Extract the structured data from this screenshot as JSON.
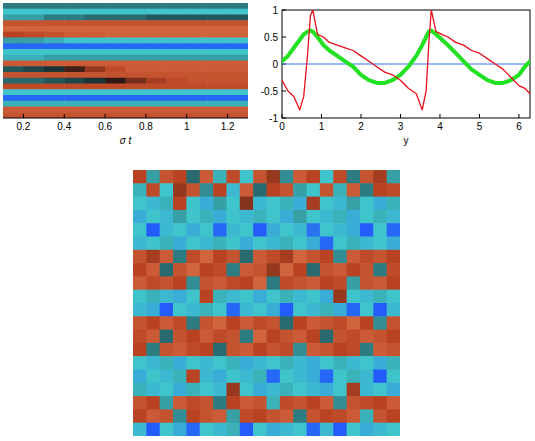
{
  "chart_data": [
    {
      "type": "heatmap",
      "x_label": "σ t",
      "xlim": [
        0.1,
        1.3
      ],
      "xticks": [
        0.2,
        0.4,
        0.6,
        0.8,
        1,
        1.2
      ],
      "tick_labels": "x",
      "color_range": [
        -2,
        2
      ],
      "cells": [
        [
          -0.6,
          -0.6,
          -0.6,
          -0.6,
          -0.6,
          -0.6,
          -0.6,
          -0.6,
          -0.6,
          -0.6,
          -0.6,
          -0.6
        ],
        [
          -1,
          -1,
          -1,
          -1,
          -1,
          -1,
          -1,
          -1,
          -1,
          -1,
          -1,
          -1
        ],
        [
          -0.8,
          -0.8,
          -0.6,
          -0.6,
          -0.5,
          -0.5,
          -0.5,
          -0.4,
          -0.4,
          -0.4,
          -0.4,
          -0.4
        ],
        [
          1.2,
          1.2,
          1.2,
          1.2,
          1.2,
          1.2,
          1.2,
          1.2,
          1.2,
          1.2,
          1.2,
          1.2
        ],
        [
          1.4,
          1.4,
          1.4,
          1.4,
          1.4,
          1.4,
          1.4,
          1.4,
          1.4,
          1.4,
          1.4,
          1.4
        ],
        [
          1,
          1.1,
          1.2,
          1.3,
          1.3,
          1.4,
          1.4,
          1.4,
          1.4,
          1.4,
          1.4,
          1.4
        ],
        [
          -0.8,
          -0.8,
          -0.9,
          -1,
          -1,
          -1,
          -1,
          -1,
          -1,
          -1,
          -1,
          -1
        ],
        [
          -1.8,
          -1.8,
          -1.8,
          -1.8,
          -1.8,
          -1.8,
          -1.8,
          -1.8,
          -1.8,
          -1.8,
          -1.8,
          -1.8
        ],
        [
          -1,
          -1,
          -1,
          -1,
          -1,
          -1,
          -1,
          -1,
          -1,
          -1,
          -1,
          -1
        ],
        [
          -0.9,
          -0.9,
          -0.8,
          -0.8,
          -0.8,
          -0.8,
          -0.8,
          -0.8,
          -0.8,
          -0.8,
          -0.8,
          -0.8
        ],
        [
          1.3,
          1.3,
          1.3,
          1.3,
          1.3,
          1.3,
          1.3,
          1.3,
          1.3,
          1.3,
          1.3,
          1.3
        ],
        [
          -0.4,
          -0.3,
          -0.2,
          0.3,
          0.8,
          1.1,
          1.3,
          1.3,
          1.3,
          1.3,
          1.3,
          1.3
        ],
        [
          1.2,
          1.2,
          1.2,
          1.2,
          1.2,
          1.2,
          1.2,
          1.2,
          1.2,
          1.2,
          1.2,
          1.2
        ],
        [
          -0.5,
          -0.5,
          -0.4,
          -0.3,
          -0.2,
          0.2,
          0.6,
          0.9,
          1.1,
          1.2,
          1.2,
          1.2
        ],
        [
          1.1,
          1.1,
          1.1,
          1.1,
          1.1,
          1.1,
          1.1,
          1.1,
          1.1,
          1.1,
          1.1,
          1.1
        ],
        [
          -1,
          -1,
          -1,
          -1,
          -1,
          -1,
          -1,
          -1,
          -1,
          -1,
          -1,
          -1
        ],
        [
          -1.8,
          -1.8,
          -1.8,
          -1.8,
          -1.8,
          -1.8,
          -1.8,
          -1.8,
          -1.8,
          -1.8,
          -1.8,
          -1.8
        ],
        [
          -0.9,
          -0.9,
          -0.9,
          -0.9,
          -0.9,
          -0.9,
          -0.9,
          -0.9,
          -0.9,
          -0.9,
          -0.9,
          -0.9
        ],
        [
          1.3,
          1.3,
          1.3,
          1.3,
          1.3,
          1.3,
          1.3,
          1.3,
          1.3,
          1.3,
          1.3,
          1.3
        ],
        [
          1.2,
          1.2,
          1.2,
          1.2,
          1.2,
          1.2,
          1.2,
          1.2,
          1.2,
          1.2,
          1.2,
          1.2
        ]
      ]
    },
    {
      "type": "line",
      "x_label": "y",
      "xlim": [
        0,
        6.28
      ],
      "ylim": [
        -1,
        1
      ],
      "xticks": [
        0,
        1,
        2,
        3,
        4,
        5,
        6
      ],
      "yticks": [
        -1,
        -0.5,
        0,
        0.5,
        1
      ],
      "x": [
        0,
        0.15,
        0.3,
        0.45,
        0.55,
        0.65,
        0.72,
        0.78,
        0.9,
        1.05,
        1.2,
        1.4,
        1.6,
        1.8,
        2.0,
        2.2,
        2.4,
        2.6,
        2.8,
        3.0,
        3.2,
        3.4,
        3.55,
        3.65,
        3.72,
        3.78,
        3.9,
        4.05,
        4.2,
        4.4,
        4.6,
        4.8,
        5.0,
        5.2,
        5.4,
        5.6,
        5.8,
        6.0,
        6.15,
        6.28
      ],
      "series": [
        {
          "color": "#e8101a",
          "values": [
            -0.3,
            -0.5,
            -0.6,
            -0.85,
            -0.6,
            0.2,
            0.9,
            1.0,
            0.55,
            0.5,
            0.4,
            0.35,
            0.3,
            0.25,
            0.15,
            0.05,
            -0.05,
            -0.15,
            -0.2,
            -0.3,
            -0.45,
            -0.55,
            -0.85,
            -0.5,
            0.4,
            1.0,
            0.6,
            0.55,
            0.5,
            0.4,
            0.35,
            0.25,
            0.2,
            0.1,
            0.0,
            -0.1,
            -0.25,
            -0.4,
            -0.45,
            -0.55
          ]
        },
        {
          "color": "#22e022",
          "values": [
            0.05,
            0.15,
            0.3,
            0.45,
            0.55,
            0.6,
            0.62,
            0.6,
            0.5,
            0.35,
            0.25,
            0.15,
            0.05,
            -0.05,
            -0.2,
            -0.3,
            -0.35,
            -0.35,
            -0.3,
            -0.2,
            -0.05,
            0.15,
            0.35,
            0.5,
            0.6,
            0.62,
            0.55,
            0.45,
            0.35,
            0.2,
            0.05,
            -0.1,
            -0.2,
            -0.3,
            -0.35,
            -0.35,
            -0.3,
            -0.2,
            -0.05,
            0.05
          ]
        },
        {
          "color": "#3070ff",
          "values": [
            0,
            0,
            0,
            0,
            0,
            0,
            0,
            0,
            0,
            0,
            0,
            0,
            0,
            0,
            0,
            0,
            0,
            0,
            0,
            0,
            0,
            0,
            0,
            0,
            0,
            0,
            0,
            0,
            0,
            0,
            0,
            0,
            0,
            0,
            0,
            0,
            0,
            0,
            0,
            0
          ]
        }
      ]
    },
    {
      "type": "heatmap",
      "tick_labels": false,
      "color_range": [
        -2,
        2
      ],
      "cells": [
        [
          1,
          -0.8,
          1.2,
          1,
          -0.5,
          1.3,
          -0.9,
          1.1,
          -1,
          1.2,
          0.8,
          -0.7,
          1.3,
          1,
          -1,
          1.1,
          -0.6,
          1.2,
          0.9,
          -0.8
        ],
        [
          -0.9,
          1.1,
          -1,
          0.8,
          1.2,
          -0.7,
          1,
          -1.1,
          1.3,
          -0.5,
          1,
          1.2,
          -0.8,
          -1,
          1.2,
          -0.9,
          1.3,
          -0.6,
          1,
          1.1
        ],
        [
          -1,
          -1.1,
          -0.9,
          1,
          -1,
          -1.2,
          -0.8,
          -1,
          0.7,
          -1.1,
          -1,
          -0.9,
          -1.2,
          0.9,
          -1,
          -1.1,
          -0.8,
          -1,
          -1.2,
          -0.9
        ],
        [
          -1.2,
          -1,
          -1.1,
          -0.8,
          -1,
          -0.9,
          -1.2,
          -1,
          -1.1,
          -0.9,
          -1,
          -1.2,
          -0.8,
          -1,
          -1.1,
          -0.9,
          -1.2,
          -1,
          -0.9,
          -1.1
        ],
        [
          -1,
          -1.9,
          -1.1,
          -1,
          -1.2,
          -1,
          -1.8,
          -1.1,
          -1,
          -1.9,
          -1.2,
          -1,
          -1.1,
          -1.7,
          -1,
          -1.1,
          -1.2,
          -1.9,
          -1,
          -1.8
        ],
        [
          -1.1,
          -1,
          -0.9,
          -1.2,
          -1,
          -1.1,
          -0.9,
          -1,
          -1.2,
          -1,
          -1.1,
          -0.9,
          -1,
          -1.2,
          -1.8,
          -1,
          -0.9,
          -1.1,
          -1,
          -1.2
        ],
        [
          1.2,
          0.9,
          1.3,
          -0.6,
          1.1,
          1.4,
          1,
          1.2,
          -0.5,
          1.3,
          1.1,
          0.9,
          1.4,
          1.2,
          1,
          -0.7,
          1.3,
          1.1,
          1.2,
          1
        ],
        [
          1,
          1.3,
          -0.5,
          1.2,
          1.4,
          1,
          1.1,
          -0.6,
          1.3,
          1.2,
          0.8,
          1.4,
          1,
          -0.5,
          1.2,
          1.3,
          1,
          1.2,
          -0.6,
          1.1
        ],
        [
          1.3,
          1.1,
          1.2,
          1,
          -0.7,
          1.2,
          1.3,
          1.1,
          1,
          1.4,
          -0.6,
          1.1,
          1.2,
          1.3,
          1,
          1.1,
          -0.8,
          1.2,
          1.3,
          1
        ],
        [
          -1,
          -0.9,
          -1.1,
          -1.2,
          -1,
          1,
          -0.9,
          -1.1,
          -1,
          -1.2,
          -1,
          -0.9,
          -1.1,
          -1,
          -1.2,
          0.8,
          -1,
          -1.1,
          -0.9,
          -1
        ],
        [
          -1.1,
          -1.2,
          -1.9,
          -1,
          -1.1,
          -0.9,
          -1,
          -1.8,
          -1.1,
          -1,
          -1.2,
          -1.9,
          -1,
          -1.1,
          -0.9,
          -1.2,
          -1.8,
          -1,
          -1.9,
          -1.1
        ],
        [
          1.2,
          1,
          1.3,
          1.1,
          -0.6,
          1.2,
          1.4,
          1,
          1.3,
          1.1,
          1.2,
          -0.5,
          1,
          1.3,
          1.2,
          1.1,
          1.4,
          1,
          -0.7,
          1.2
        ],
        [
          1.1,
          1.3,
          -0.5,
          1.2,
          1,
          1.3,
          1.1,
          1.2,
          -0.6,
          1.4,
          1,
          1.2,
          1.3,
          1,
          -0.5,
          1.2,
          1.1,
          1.3,
          1.2,
          1
        ],
        [
          1,
          -0.6,
          1.2,
          1.3,
          1.1,
          1,
          -0.5,
          1.2,
          1.3,
          1,
          1.2,
          1.1,
          -0.7,
          1.3,
          1.2,
          1,
          1.1,
          -0.6,
          1.3,
          1.2
        ],
        [
          -1,
          -1.1,
          -0.9,
          -1.2,
          -1,
          -1.1,
          -1,
          -0.9,
          -1.2,
          -1.1,
          -1,
          -0.9,
          -1.1,
          -1.2,
          -1,
          -0.9,
          -1.1,
          -1,
          -1.2,
          -0.9
        ],
        [
          -1.2,
          -1,
          -1.1,
          -0.9,
          1,
          -1.1,
          -1.2,
          -1,
          -1.1,
          -0.9,
          -1.8,
          -1,
          -1.1,
          -1.2,
          -1.8,
          -1,
          -0.9,
          -1.1,
          -1.9,
          -1
        ],
        [
          -0.9,
          -1.1,
          -1,
          -1.2,
          -0.9,
          -1,
          -1.1,
          0.8,
          -1,
          -1.2,
          -1.1,
          -0.9,
          -1,
          -1.1,
          -1.2,
          -1,
          0.9,
          -1.1,
          -1,
          -1.2
        ],
        [
          1.2,
          1,
          -0.8,
          1.3,
          1.1,
          1.2,
          -0.6,
          1,
          1.3,
          1.2,
          -0.9,
          1.1,
          1.2,
          1,
          1.3,
          -0.7,
          1.2,
          1.1,
          1,
          1.3
        ],
        [
          1,
          1.3,
          1.2,
          -0.7,
          1,
          1.2,
          1.3,
          -0.8,
          1.1,
          1,
          1.2,
          1.3,
          -0.6,
          1.2,
          1,
          1.1,
          1.3,
          -0.9,
          1.2,
          1
        ],
        [
          -1.1,
          -1.9,
          -1,
          -1.2,
          -1.8,
          -1,
          -1.1,
          -0.9,
          -1.9,
          -1,
          -1.2,
          -1.1,
          -1,
          -1.8,
          -1.1,
          -1.9,
          -1,
          -1.2,
          -1.1,
          -1
        ]
      ]
    }
  ]
}
